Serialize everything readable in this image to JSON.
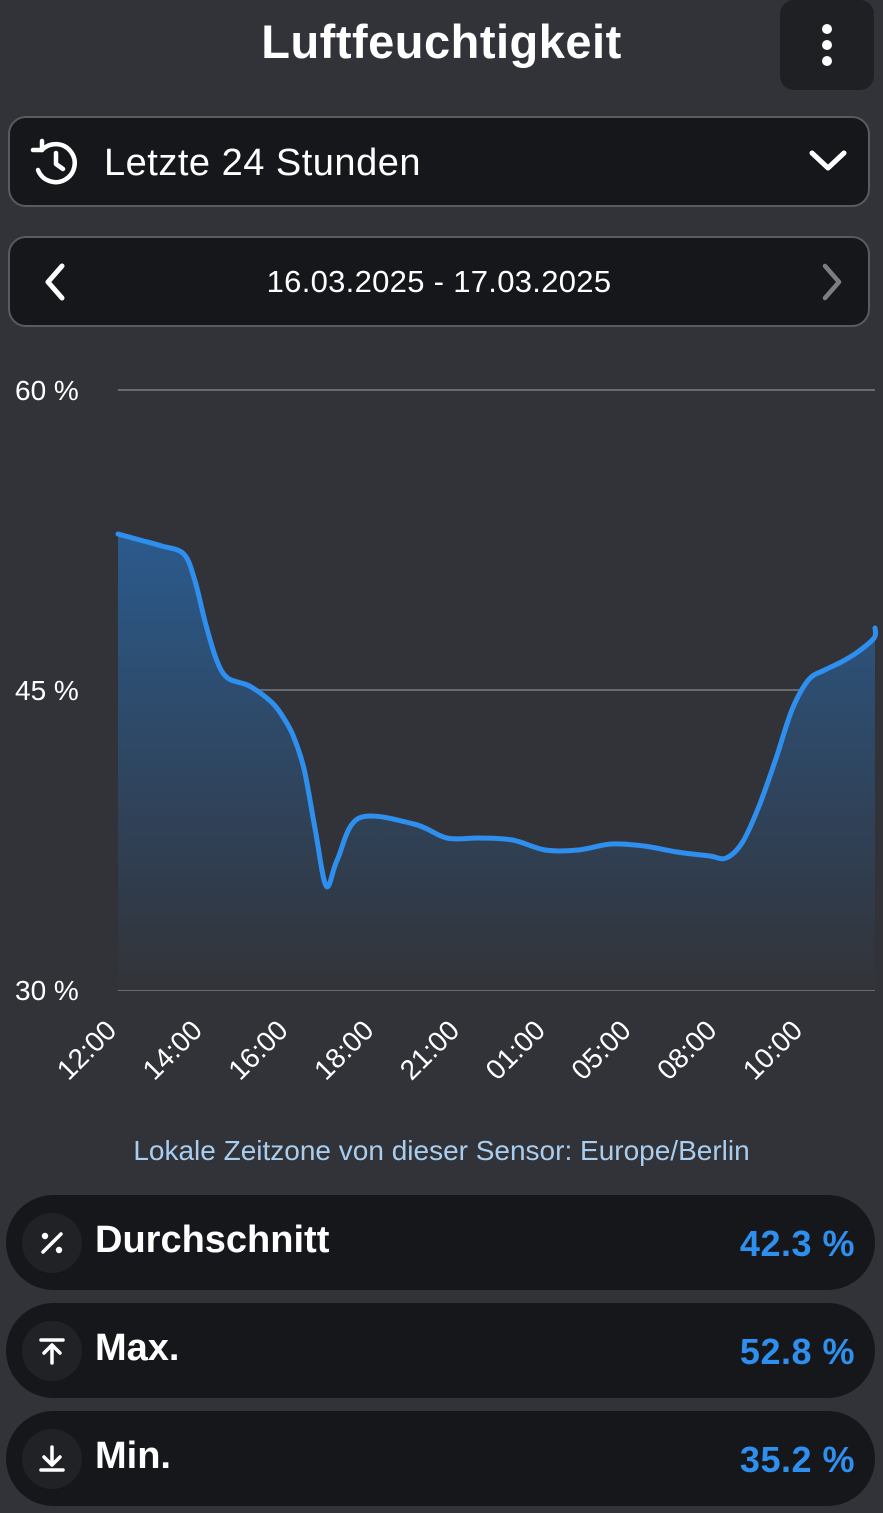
{
  "header": {
    "title": "Luftfeuchtigkeit",
    "menu_icon": "more-vertical-icon"
  },
  "period_selector": {
    "label": "Letzte 24 Stunden",
    "icon": "history-icon",
    "dropdown_icon": "chevron-down-icon"
  },
  "date_nav": {
    "range": "16.03.2025 - 17.03.2025",
    "prev_icon": "chevron-left-icon",
    "next_icon": "chevron-right-icon",
    "next_enabled": false
  },
  "chart_data": {
    "type": "area",
    "title": "",
    "xlabel": "",
    "ylabel": "",
    "ylim": [
      30,
      60
    ],
    "y_ticks": [
      "30 %",
      "45 %",
      "60 %"
    ],
    "x_ticks": [
      "12:00",
      "14:00",
      "16:00",
      "18:00",
      "21:00",
      "01:00",
      "05:00",
      "08:00",
      "10:00"
    ],
    "x": [
      "12:00",
      "12:40",
      "13:20",
      "14:00",
      "14:20",
      "14:40",
      "15:00",
      "15:20",
      "16:00",
      "16:40",
      "17:00",
      "17:20",
      "17:40",
      "18:00",
      "18:20",
      "18:40",
      "19:20",
      "21:00",
      "22:00",
      "23:00",
      "00:00",
      "01:00",
      "02:00",
      "03:00",
      "04:00",
      "05:00",
      "06:00",
      "06:30",
      "07:00",
      "07:30",
      "08:00",
      "08:30",
      "09:00",
      "09:30",
      "10:00",
      "10:30",
      "11:00",
      "11:30"
    ],
    "values": [
      52.8,
      52.5,
      52.2,
      51.8,
      50.5,
      48.3,
      46.5,
      45.6,
      45.2,
      44.4,
      43.7,
      42.7,
      41.0,
      38.0,
      35.2,
      36.5,
      38.6,
      38.3,
      37.6,
      37.6,
      37.5,
      37.0,
      37.0,
      37.3,
      37.2,
      36.9,
      36.7,
      36.6,
      37.4,
      39.2,
      41.5,
      44.0,
      45.5,
      46.0,
      46.4,
      46.9,
      47.6,
      48.1
    ],
    "grid": true,
    "line_color": "#2e8fef",
    "fill_color_top": "#2b5a8c",
    "fill_color_bottom": "#323338"
  },
  "timezone_note": "Lokale Zeitzone von dieser Sensor: Europe/Berlin",
  "stats": [
    {
      "label": "Durchschnitt",
      "value": "42.3 %",
      "icon": "percent-icon"
    },
    {
      "label": "Max.",
      "value": "52.8 %",
      "icon": "arrow-up-to-line-icon"
    },
    {
      "label": "Min.",
      "value": "35.2 %",
      "icon": "arrow-down-to-line-icon"
    }
  ]
}
